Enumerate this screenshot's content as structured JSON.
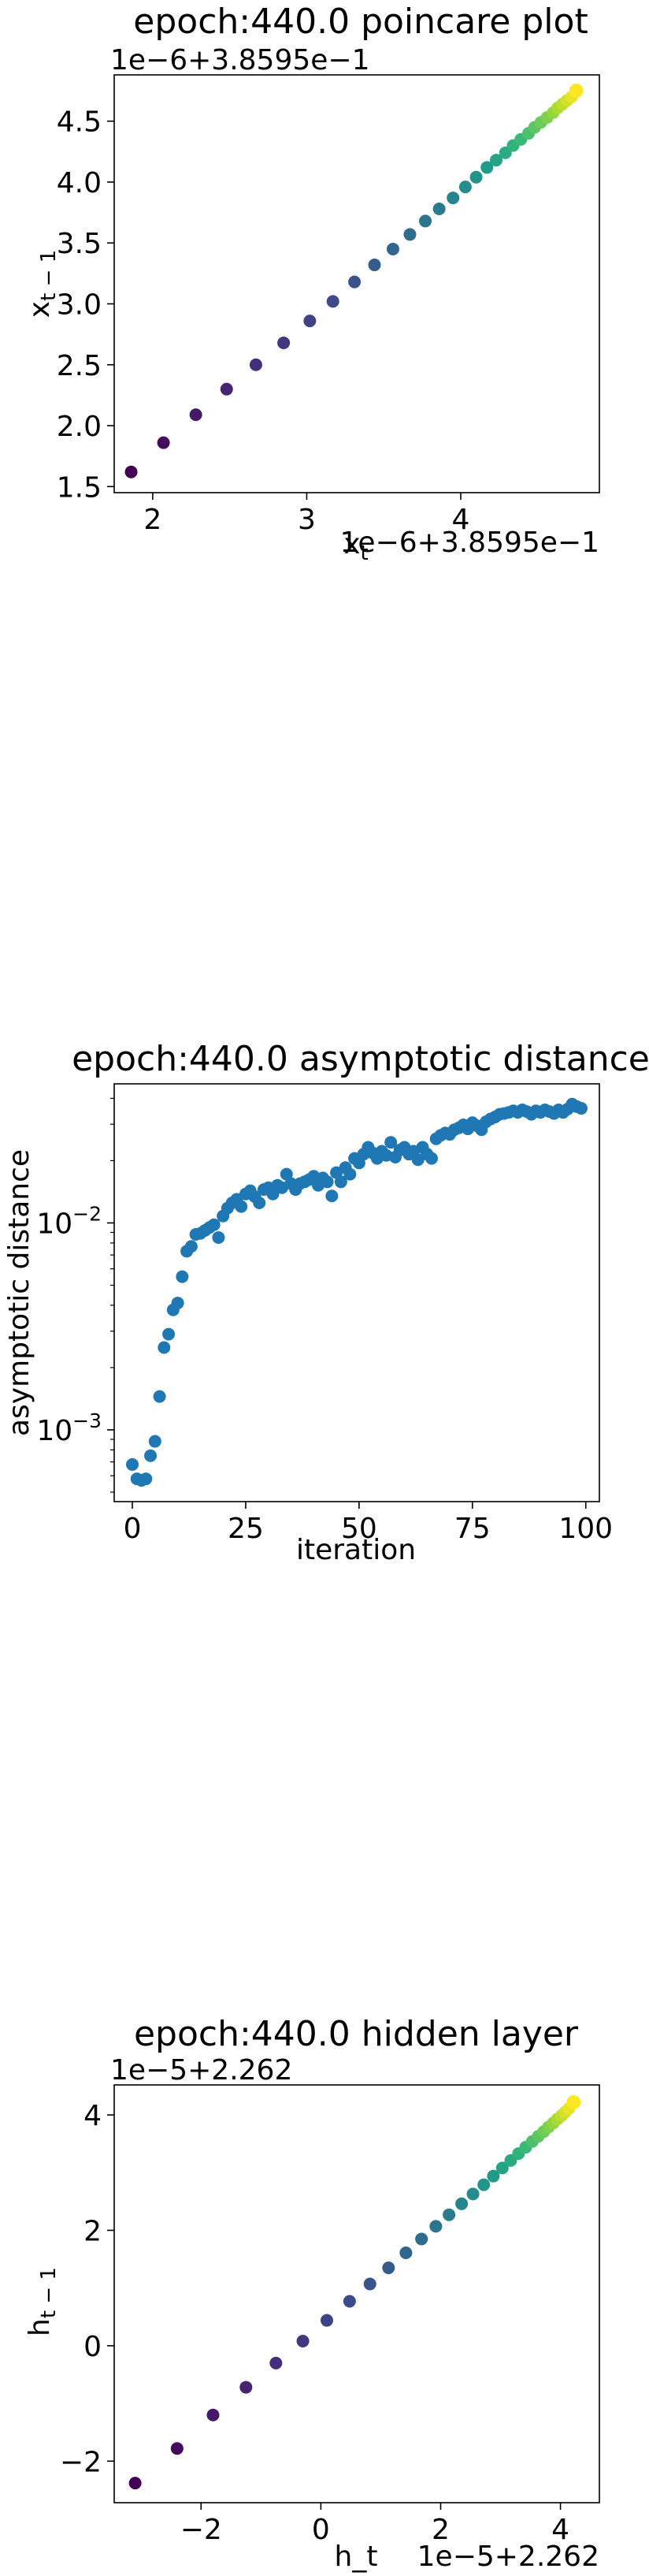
{
  "chart_data": [
    {
      "type": "scatter",
      "title": "epoch:440.0 poincare plot",
      "xlabel": "x_t",
      "ylabel": "x_{t-1}",
      "x_offset_label": "1e−6+3.8595e−1",
      "y_offset_label": "1e−6+3.8595e−1",
      "xlim": [
        1.75,
        4.9
      ],
      "ylim": [
        1.45,
        4.88
      ],
      "xticks": [
        2,
        3,
        4
      ],
      "xtick_labels": [
        "2",
        "3",
        "4"
      ],
      "yticks": [
        1.5,
        2.0,
        2.5,
        3.0,
        3.5,
        4.0,
        4.5
      ],
      "ytick_labels": [
        "1.5",
        "2.0",
        "2.5",
        "3.0",
        "3.5",
        "4.0",
        "4.5"
      ],
      "colormap": "viridis",
      "grid": false,
      "x": [
        1.86,
        2.07,
        2.28,
        2.48,
        2.67,
        2.85,
        3.02,
        3.17,
        3.31,
        3.44,
        3.56,
        3.67,
        3.77,
        3.86,
        3.95,
        4.03,
        4.1,
        4.17,
        4.23,
        4.29,
        4.34,
        4.39,
        4.44,
        4.48,
        4.52,
        4.56,
        4.6,
        4.63,
        4.66,
        4.69,
        4.72,
        4.75
      ],
      "y": [
        1.62,
        1.86,
        2.09,
        2.3,
        2.5,
        2.68,
        2.86,
        3.02,
        3.18,
        3.32,
        3.45,
        3.57,
        3.68,
        3.78,
        3.87,
        3.96,
        4.04,
        4.12,
        4.18,
        4.24,
        4.3,
        4.35,
        4.4,
        4.45,
        4.49,
        4.53,
        4.57,
        4.61,
        4.64,
        4.67,
        4.7,
        4.75
      ]
    },
    {
      "type": "scatter",
      "title": "epoch:440.0 asymptotic distance",
      "xlabel": "iteration",
      "ylabel": "asymptotic distance",
      "yscale": "log",
      "xlim": [
        -4,
        103
      ],
      "ylim": [
        0.00045,
        0.047
      ],
      "xticks": [
        0,
        25,
        50,
        75,
        100
      ],
      "xtick_labels": [
        "0",
        "25",
        "50",
        "75",
        "100"
      ],
      "yticks": [
        0.001,
        0.01
      ],
      "ytick_labels": [
        "10−3",
        "10−2"
      ],
      "color": "#1f77b4",
      "grid": false,
      "x": [
        0,
        1,
        2,
        3,
        4,
        5,
        6,
        7,
        8,
        9,
        10,
        11,
        12,
        13,
        14,
        15,
        16,
        17,
        18,
        19,
        20,
        21,
        22,
        23,
        24,
        25,
        26,
        27,
        28,
        29,
        30,
        31,
        32,
        33,
        34,
        35,
        36,
        37,
        38,
        39,
        40,
        41,
        42,
        43,
        44,
        45,
        46,
        47,
        48,
        49,
        50,
        51,
        52,
        53,
        54,
        55,
        56,
        57,
        58,
        59,
        60,
        61,
        62,
        63,
        64,
        65,
        66,
        67,
        68,
        69,
        70,
        71,
        72,
        73,
        74,
        75,
        76,
        77,
        78,
        79,
        80,
        81,
        82,
        83,
        84,
        85,
        86,
        87,
        88,
        89,
        90,
        91,
        92,
        93,
        94,
        95,
        96,
        97,
        98,
        99
      ],
      "y": [
        0.00068,
        0.00058,
        0.00057,
        0.00058,
        0.00075,
        0.00088,
        0.00145,
        0.0025,
        0.0029,
        0.0038,
        0.0041,
        0.0055,
        0.0073,
        0.0077,
        0.0088,
        0.0089,
        0.0092,
        0.0095,
        0.0098,
        0.0085,
        0.0108,
        0.0118,
        0.0125,
        0.013,
        0.012,
        0.0138,
        0.0143,
        0.0134,
        0.0125,
        0.0145,
        0.0148,
        0.0138,
        0.0152,
        0.0148,
        0.0172,
        0.0155,
        0.0145,
        0.0155,
        0.0158,
        0.0162,
        0.0168,
        0.0152,
        0.0165,
        0.0158,
        0.0135,
        0.0175,
        0.0158,
        0.0185,
        0.0172,
        0.0205,
        0.0195,
        0.0215,
        0.0232,
        0.0218,
        0.0205,
        0.0222,
        0.0212,
        0.0245,
        0.0208,
        0.0225,
        0.0232,
        0.0215,
        0.0222,
        0.0202,
        0.0232,
        0.0215,
        0.0205,
        0.0255,
        0.0265,
        0.0272,
        0.0268,
        0.0282,
        0.0288,
        0.0298,
        0.0285,
        0.0305,
        0.0295,
        0.0282,
        0.0308,
        0.0318,
        0.0325,
        0.0335,
        0.0338,
        0.0342,
        0.0348,
        0.0342,
        0.0352,
        0.0345,
        0.0335,
        0.0348,
        0.0342,
        0.0352,
        0.0345,
        0.0338,
        0.0352,
        0.0342,
        0.0355,
        0.0375,
        0.0365,
        0.0358
      ]
    },
    {
      "type": "scatter",
      "title": "epoch:440.0 hidden layer",
      "xlabel": "h_t",
      "ylabel": "h_{t-1}",
      "x_offset_label": "1e−5+2.262",
      "y_offset_label": "1e−5+2.262",
      "xlim": [
        -3.45,
        4.65
      ],
      "ylim": [
        -2.72,
        4.52
      ],
      "xticks": [
        -2,
        0,
        2,
        4
      ],
      "xtick_labels": [
        "−2",
        "0",
        "2",
        "4"
      ],
      "yticks": [
        -2,
        0,
        2,
        4
      ],
      "ytick_labels": [
        "−2",
        "0",
        "2",
        "4"
      ],
      "colormap": "viridis",
      "grid": false,
      "x": [
        -3.1,
        -2.4,
        -1.8,
        -1.25,
        -0.75,
        -0.3,
        0.1,
        0.48,
        0.82,
        1.13,
        1.42,
        1.68,
        1.92,
        2.14,
        2.35,
        2.54,
        2.72,
        2.88,
        3.03,
        3.17,
        3.3,
        3.42,
        3.53,
        3.63,
        3.72,
        3.8,
        3.88,
        3.95,
        4.02,
        4.08,
        4.14,
        4.22
      ],
      "y": [
        -2.38,
        -1.78,
        -1.2,
        -0.72,
        -0.3,
        0.08,
        0.44,
        0.77,
        1.07,
        1.35,
        1.61,
        1.85,
        2.07,
        2.27,
        2.46,
        2.63,
        2.79,
        2.94,
        3.08,
        3.21,
        3.33,
        3.44,
        3.54,
        3.63,
        3.71,
        3.79,
        3.86,
        3.93,
        3.99,
        4.05,
        4.11,
        4.22
      ]
    }
  ]
}
